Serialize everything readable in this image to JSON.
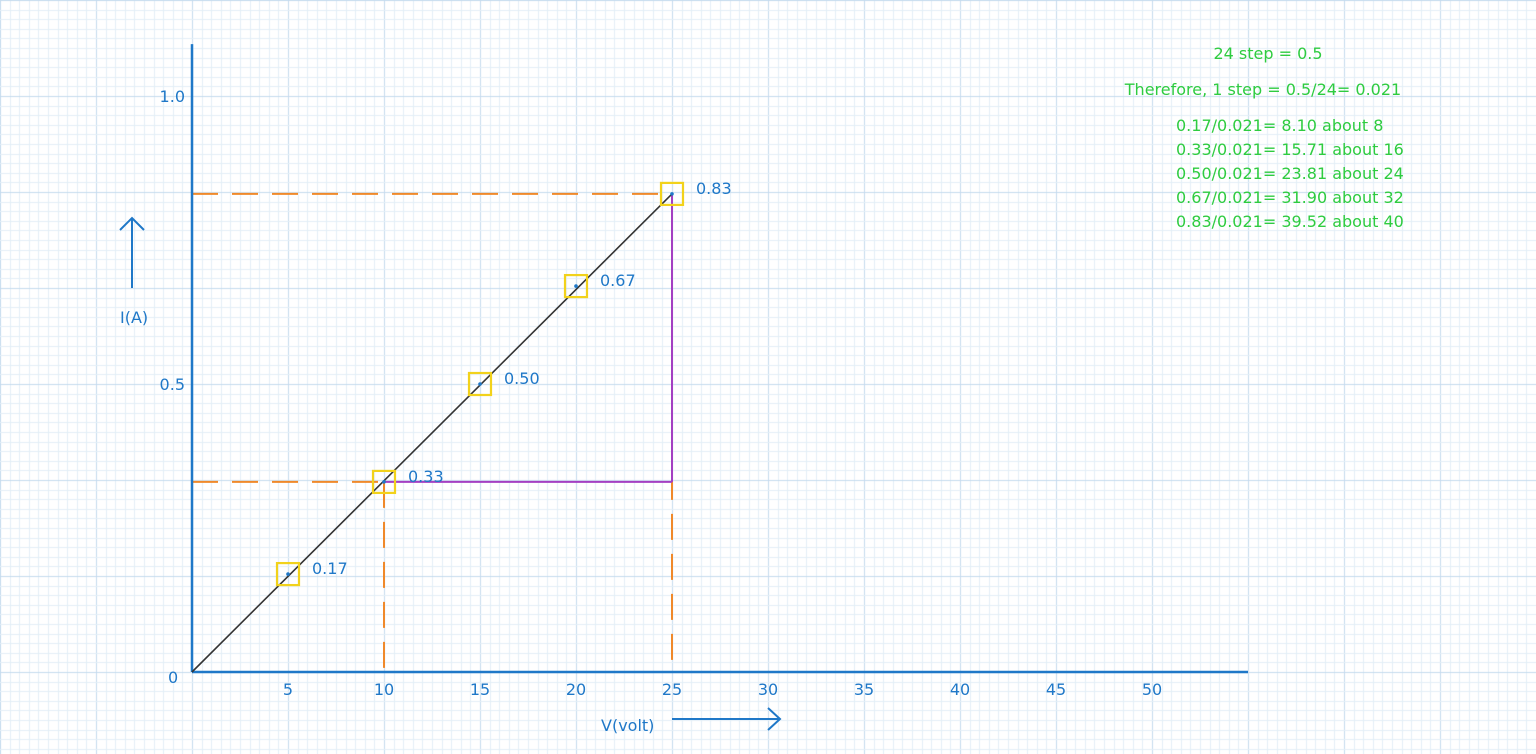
{
  "chart_data": {
    "type": "line",
    "xlabel": "V(volt)",
    "ylabel": "I(A)",
    "xlim": [
      0,
      55
    ],
    "ylim": [
      0,
      1.09
    ],
    "x_ticks": [
      "5",
      "10",
      "15",
      "20",
      "25",
      "30",
      "35",
      "40",
      "45",
      "50"
    ],
    "y_ticks": [
      {
        "value": 0.5,
        "label": "0.5"
      },
      {
        "value": 1.0,
        "label": "1.0"
      }
    ],
    "origin_label": "0",
    "grid": true,
    "series": [
      {
        "x": [
          0,
          25
        ],
        "y": [
          0,
          0.83
        ]
      }
    ],
    "points": [
      {
        "x": 5,
        "y": 0.17,
        "label": "0.17"
      },
      {
        "x": 10,
        "y": 0.33,
        "label": "0.33"
      },
      {
        "x": 15,
        "y": 0.5,
        "label": "0.50"
      },
      {
        "x": 20,
        "y": 0.67,
        "label": "0.67"
      },
      {
        "x": 25,
        "y": 0.83,
        "label": "0.83"
      }
    ],
    "dashed_guides": [
      {
        "x": 10,
        "y": 0.33
      },
      {
        "x": 25,
        "y": 0.83
      }
    ],
    "slope_triangle": {
      "x1": 10,
      "y1": 0.33,
      "x2": 25,
      "y2": 0.83
    },
    "annotations": [
      "24 step = 0.5",
      "Therefore, 1 step = 0.5/24= 0.021",
      "0.17/0.021= 8.10 about 8",
      "0.33/0.021= 15.71 about 16",
      "0.50/0.021= 23.81 about 24",
      "0.67/0.021= 31.90  about 32",
      "0.83/0.021= 39.52  about 40"
    ]
  },
  "colors": {
    "axis": "#1f78c8",
    "line": "#333333",
    "marker": "#f2d21b",
    "guide": "#f0892a",
    "triangle": "#a43fc2",
    "notes": "#2ecc40",
    "grid_minor": "#e3eef7",
    "grid_major": "#c5dbee"
  }
}
